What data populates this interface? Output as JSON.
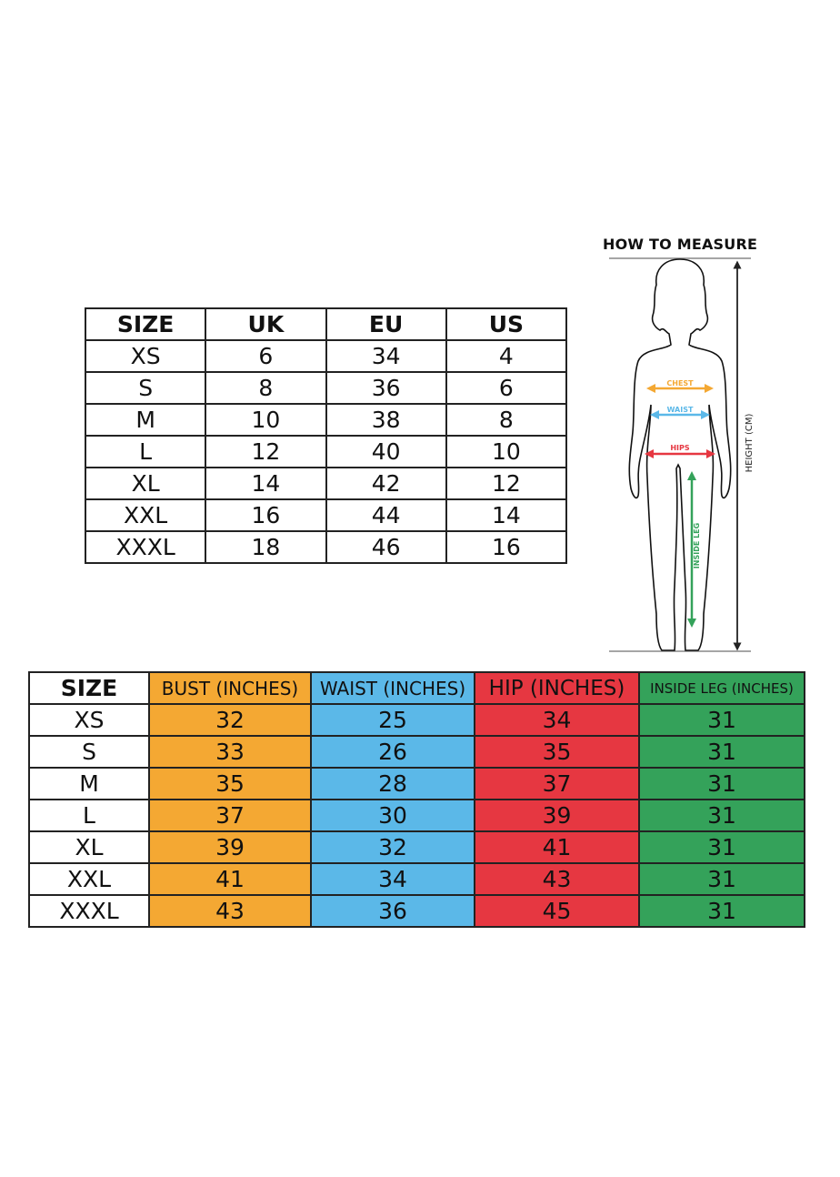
{
  "conversion_table": {
    "headers": [
      "SIZE",
      "UK",
      "EU",
      "US"
    ],
    "rows": [
      [
        "XS",
        "6",
        "34",
        "4"
      ],
      [
        "S",
        "8",
        "36",
        "6"
      ],
      [
        "M",
        "10",
        "38",
        "8"
      ],
      [
        "L",
        "12",
        "40",
        "10"
      ],
      [
        "XL",
        "14",
        "42",
        "12"
      ],
      [
        "XXL",
        "16",
        "44",
        "14"
      ],
      [
        "XXXL",
        "18",
        "46",
        "16"
      ]
    ]
  },
  "how_to_measure": {
    "title": "HOW TO MEASURE",
    "labels": {
      "chest": "CHEST",
      "waist": "WAIST",
      "hips": "HIPS",
      "inside_leg": "INSIDE LEG",
      "height": "HEIGHT (CM)"
    },
    "colors": {
      "chest": "#F4A833",
      "waist": "#5BB8E8",
      "hips": "#E63741",
      "inside_leg": "#34A25A"
    }
  },
  "measurement_table": {
    "headers": [
      "SIZE",
      "BUST (INCHES)",
      "WAIST (INCHES)",
      "HIP (INCHES)",
      "INSIDE LEG (INCHES)"
    ],
    "column_colors": [
      "#FFFFFF",
      "#F4A833",
      "#5BB8E8",
      "#E63741",
      "#34A25A"
    ],
    "rows": [
      [
        "XS",
        "32",
        "25",
        "34",
        "31"
      ],
      [
        "S",
        "33",
        "26",
        "35",
        "31"
      ],
      [
        "M",
        "35",
        "28",
        "37",
        "31"
      ],
      [
        "L",
        "37",
        "30",
        "39",
        "31"
      ],
      [
        "XL",
        "39",
        "32",
        "41",
        "31"
      ],
      [
        "XXL",
        "41",
        "34",
        "43",
        "31"
      ],
      [
        "XXXL",
        "43",
        "36",
        "45",
        "31"
      ]
    ]
  }
}
